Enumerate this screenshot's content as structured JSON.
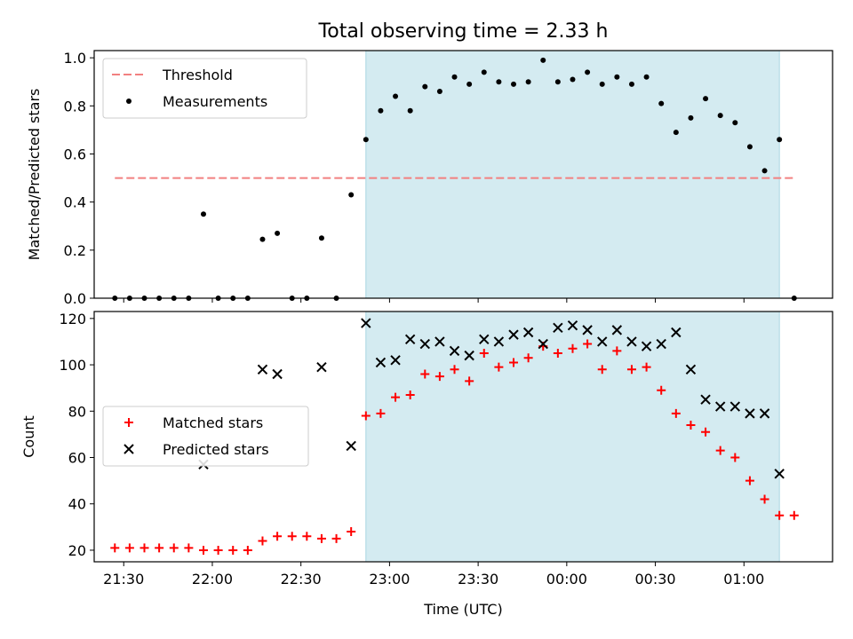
{
  "chart_data": [
    {
      "type": "scatter",
      "title": "Total observing time = 2.33 h",
      "xlabel": "",
      "ylabel": "Matched/Predicted stars",
      "xlim": [
        "21:20",
        "01:30"
      ],
      "ylim": [
        0,
        1.03
      ],
      "yticks": [
        "0.0",
        "0.2",
        "0.4",
        "0.6",
        "0.8",
        "1.0"
      ],
      "grid": false,
      "legend_position": "top-left",
      "shaded_region": {
        "x_start": "22:52",
        "x_end": "01:12",
        "color": "#d4ebf1"
      },
      "threshold": {
        "name": "Threshold",
        "y": 0.5,
        "x_start": "21:27",
        "x_end": "01:17",
        "color": "#f28080"
      },
      "series": [
        {
          "name": "Measurements",
          "color": "#000000",
          "marker": "dot",
          "x": [
            "21:27",
            "21:32",
            "21:37",
            "21:42",
            "21:47",
            "21:52",
            "21:57",
            "22:02",
            "22:07",
            "22:12",
            "22:17",
            "22:22",
            "22:27",
            "22:32",
            "22:37",
            "22:42",
            "22:47",
            "22:52",
            "22:57",
            "23:02",
            "23:07",
            "23:12",
            "23:17",
            "23:22",
            "23:27",
            "23:32",
            "23:37",
            "23:42",
            "23:47",
            "23:52",
            "23:57",
            "00:02",
            "00:07",
            "00:12",
            "00:17",
            "00:22",
            "00:27",
            "00:32",
            "00:37",
            "00:42",
            "00:47",
            "00:52",
            "00:57",
            "01:02",
            "01:07",
            "01:12",
            "01:17"
          ],
          "values": [
            0.0,
            0.0,
            0.0,
            0.0,
            0.0,
            0.0,
            0.35,
            0.0,
            0.0,
            0.0,
            0.245,
            0.27,
            0.0,
            0.0,
            0.25,
            0.0,
            0.43,
            0.66,
            0.78,
            0.84,
            0.78,
            0.88,
            0.86,
            0.92,
            0.89,
            0.94,
            0.9,
            0.89,
            0.9,
            0.99,
            0.9,
            0.91,
            0.94,
            0.89,
            0.92,
            0.89,
            0.92,
            0.81,
            0.69,
            0.75,
            0.83,
            0.76,
            0.73,
            0.63,
            0.53,
            0.66,
            0.0
          ]
        }
      ]
    },
    {
      "type": "scatter",
      "title": "",
      "xlabel": "Time (UTC)",
      "ylabel": "Count",
      "xlim": [
        "21:20",
        "01:30"
      ],
      "ylim": [
        15,
        123
      ],
      "xticks": [
        "21:30",
        "22:00",
        "22:30",
        "23:00",
        "23:30",
        "00:00",
        "00:30",
        "01:00"
      ],
      "yticks": [
        "20",
        "40",
        "60",
        "80",
        "100",
        "120"
      ],
      "grid": false,
      "legend_position": "center-left",
      "shaded_region": {
        "x_start": "22:52",
        "x_end": "01:12",
        "color": "#d4ebf1"
      },
      "series": [
        {
          "name": "Matched stars",
          "color": "#ff0000",
          "marker": "plus",
          "x": [
            "21:27",
            "21:32",
            "21:37",
            "21:42",
            "21:47",
            "21:52",
            "21:57",
            "22:02",
            "22:07",
            "22:12",
            "22:17",
            "22:22",
            "22:27",
            "22:32",
            "22:37",
            "22:42",
            "22:47",
            "22:52",
            "22:57",
            "23:02",
            "23:07",
            "23:12",
            "23:17",
            "23:22",
            "23:27",
            "23:32",
            "23:37",
            "23:42",
            "23:47",
            "23:52",
            "23:57",
            "00:02",
            "00:07",
            "00:12",
            "00:17",
            "00:22",
            "00:27",
            "00:32",
            "00:37",
            "00:42",
            "00:47",
            "00:52",
            "00:57",
            "01:02",
            "01:07",
            "01:12",
            "01:17"
          ],
          "values": [
            21,
            21,
            21,
            21,
            21,
            21,
            20,
            20,
            20,
            20,
            24,
            26,
            26,
            26,
            25,
            25,
            28,
            78,
            79,
            86,
            87,
            96,
            95,
            98,
            93,
            105,
            99,
            101,
            103,
            108,
            105,
            107,
            109,
            98,
            106,
            98,
            99,
            89,
            79,
            74,
            71,
            63,
            60,
            50,
            42,
            35,
            35
          ]
        },
        {
          "name": "Predicted stars",
          "color": "#000000",
          "marker": "x",
          "x": [
            "21:57",
            "22:17",
            "22:22",
            "22:37",
            "22:47",
            "22:52",
            "22:57",
            "23:02",
            "23:07",
            "23:12",
            "23:17",
            "23:22",
            "23:27",
            "23:32",
            "23:37",
            "23:42",
            "23:47",
            "23:52",
            "23:57",
            "00:02",
            "00:07",
            "00:12",
            "00:17",
            "00:22",
            "00:27",
            "00:32",
            "00:37",
            "00:42",
            "00:47",
            "00:52",
            "00:57",
            "01:02",
            "01:07",
            "01:12"
          ],
          "values": [
            57,
            98,
            96,
            99,
            65,
            118,
            101,
            102,
            111,
            109,
            110,
            106,
            104,
            111,
            110,
            113,
            114,
            109,
            116,
            117,
            115,
            110,
            115,
            110,
            108,
            109,
            114,
            98,
            85,
            82,
            82,
            79,
            79,
            53
          ]
        }
      ]
    }
  ]
}
